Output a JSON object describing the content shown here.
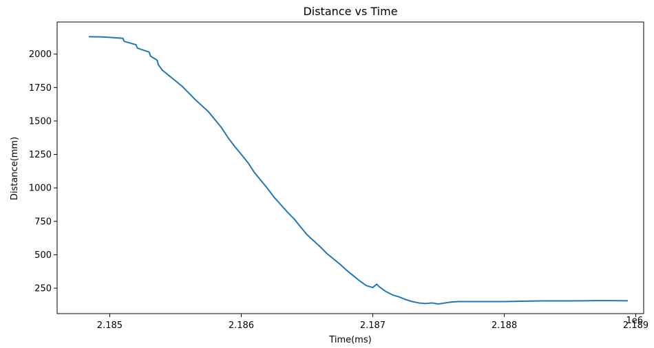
{
  "chart_data": {
    "type": "line",
    "title": "Distance vs Time",
    "xlabel": "Time(ms)",
    "ylabel": "Distance(mm)",
    "x_offset_label": "1e6",
    "xlim": [
      2184.6,
      2189.06
    ],
    "ylim": [
      60,
      2240
    ],
    "x_ticks": [
      2185,
      2186,
      2187,
      2188,
      2189
    ],
    "x_tick_labels": [
      "2.185",
      "2.186",
      "2.187",
      "2.188",
      "2.189"
    ],
    "y_ticks": [
      250,
      500,
      750,
      1000,
      1250,
      1500,
      1750,
      2000
    ],
    "y_tick_labels": [
      "250",
      "500",
      "750",
      "1000",
      "1250",
      "1500",
      "1750",
      "2000"
    ],
    "grid": false,
    "series": [
      {
        "color": "#1f77b4",
        "x": [
          2184.84,
          2184.95,
          2185.0,
          2185.05,
          2185.1,
          2185.11,
          2185.2,
          2185.21,
          2185.3,
          2185.31,
          2185.36,
          2185.37,
          2185.4,
          2185.45,
          2185.5,
          2185.55,
          2185.6,
          2185.65,
          2185.7,
          2185.75,
          2185.8,
          2185.85,
          2185.9,
          2185.95,
          2186.0,
          2186.05,
          2186.1,
          2186.15,
          2186.2,
          2186.25,
          2186.3,
          2186.35,
          2186.4,
          2186.45,
          2186.5,
          2186.55,
          2186.6,
          2186.65,
          2186.7,
          2186.75,
          2186.8,
          2186.85,
          2186.9,
          2186.95,
          2187.0,
          2187.03,
          2187.05,
          2187.1,
          2187.15,
          2187.2,
          2187.25,
          2187.3,
          2187.35,
          2187.4,
          2187.45,
          2187.5,
          2187.55,
          2187.6,
          2187.65,
          2187.7,
          2187.8,
          2187.9,
          2188.0,
          2188.1,
          2188.2,
          2188.3,
          2188.4,
          2188.5,
          2188.6,
          2188.7,
          2188.8,
          2188.94
        ],
        "y": [
          2130,
          2128,
          2125,
          2122,
          2118,
          2095,
          2070,
          2045,
          2015,
          1985,
          1955,
          1920,
          1880,
          1840,
          1800,
          1760,
          1710,
          1660,
          1615,
          1570,
          1510,
          1450,
          1375,
          1310,
          1250,
          1190,
          1115,
          1055,
          995,
          930,
          875,
          820,
          770,
          710,
          650,
          605,
          560,
          510,
          470,
          430,
          385,
          345,
          305,
          270,
          255,
          280,
          260,
          225,
          200,
          185,
          165,
          150,
          140,
          135,
          140,
          132,
          140,
          147,
          150,
          150,
          150,
          150,
          150,
          152,
          154,
          155,
          155,
          155,
          156,
          157,
          157,
          156
        ]
      }
    ]
  }
}
